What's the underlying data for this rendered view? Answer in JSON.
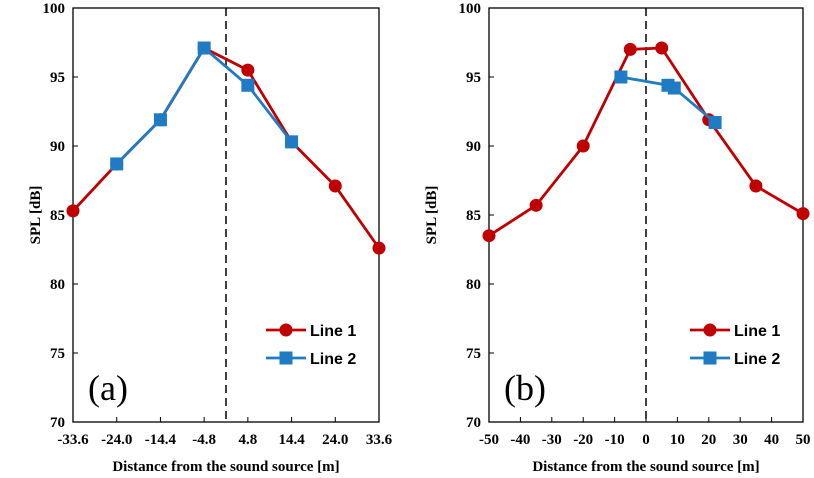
{
  "chart_data": [
    {
      "type": "line",
      "panel_label": "(a)",
      "xlabel": "Distance from the sound source [m]",
      "ylabel": "SPL [dB]",
      "x_scale": "categorical",
      "categories": [
        "-33.6",
        "-24.0",
        "-14.4",
        "-4.8",
        "4.8",
        "14.4",
        "24.0",
        "33.6"
      ],
      "ylim": [
        70,
        100
      ],
      "yticks": [
        70,
        75,
        80,
        85,
        90,
        95,
        100
      ],
      "grid": false,
      "legend_position": "bottom-right",
      "vline_x": 0,
      "series": [
        {
          "name": "Line 1",
          "color": "#C00000",
          "marker": "circle",
          "values": [
            85.3,
            88.7,
            91.9,
            97.1,
            95.5,
            90.3,
            87.1,
            82.6
          ]
        },
        {
          "name": "Line 2",
          "color": "#1F7BC4",
          "marker": "square",
          "values": [
            null,
            88.7,
            91.9,
            97.1,
            94.4,
            90.3,
            null,
            null
          ]
        }
      ]
    },
    {
      "type": "line",
      "panel_label": "(b)",
      "xlabel": "Distance from the sound source [m]",
      "ylabel": "SPL [dB]",
      "x_scale": "linear",
      "xlim": [
        -50,
        50
      ],
      "xticks": [
        -50,
        -40,
        -30,
        -20,
        -10,
        0,
        10,
        20,
        30,
        40,
        50
      ],
      "ylim": [
        70,
        100
      ],
      "yticks": [
        70,
        75,
        80,
        85,
        90,
        95,
        100
      ],
      "grid": false,
      "legend_position": "bottom-right",
      "vline_x": 0,
      "series": [
        {
          "name": "Line 1",
          "color": "#C00000",
          "marker": "circle",
          "points": [
            [
              -50,
              83.5
            ],
            [
              -35,
              85.7
            ],
            [
              -20,
              90.0
            ],
            [
              -5,
              97.0
            ],
            [
              5,
              97.1
            ],
            [
              20,
              91.9
            ],
            [
              35,
              87.1
            ],
            [
              50,
              85.1
            ]
          ]
        },
        {
          "name": "Line 2",
          "color": "#1F7BC4",
          "marker": "square",
          "points": [
            [
              -8,
              95.0
            ],
            [
              7,
              94.4
            ],
            [
              9,
              94.2
            ],
            [
              22,
              91.7
            ]
          ]
        }
      ]
    }
  ]
}
